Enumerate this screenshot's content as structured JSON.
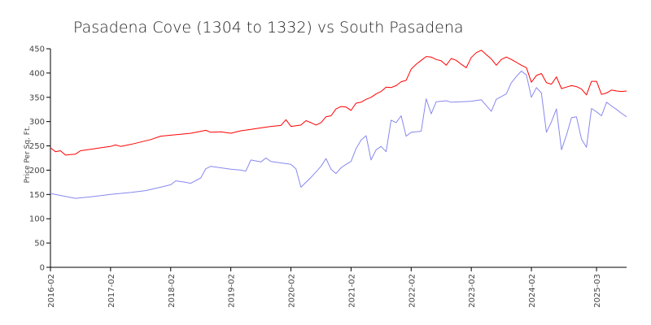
{
  "chart_data": {
    "type": "line",
    "title": "Pasadena Cove (1304 to 1332) vs South Pasadena",
    "xlabel": "",
    "ylabel": "Price Per Sq. Ft.",
    "ylim": [
      0,
      450
    ],
    "yticks": [
      0,
      50,
      100,
      150,
      200,
      250,
      300,
      350,
      400,
      450
    ],
    "xlim": [
      "2016-02",
      "2025-09"
    ],
    "xticks": [
      "2016-02",
      "2017-02",
      "2018-02",
      "2019-02",
      "2020-02",
      "2021-02",
      "2022-02",
      "2023-02",
      "2024-02",
      "2025-03"
    ],
    "grid": false,
    "legend": "none",
    "series": [
      {
        "color": "#ff0000",
        "points": [
          [
            "2016-02",
            246
          ],
          [
            "2016-03",
            238
          ],
          [
            "2016-04",
            240
          ],
          [
            "2016-05",
            231
          ],
          [
            "2016-06",
            232
          ],
          [
            "2016-07",
            233
          ],
          [
            "2016-08",
            240
          ],
          [
            "2016-10",
            243
          ],
          [
            "2016-12",
            246
          ],
          [
            "2017-02",
            249
          ],
          [
            "2017-03",
            252
          ],
          [
            "2017-04",
            249
          ],
          [
            "2017-06",
            253
          ],
          [
            "2017-08",
            258
          ],
          [
            "2017-10",
            263
          ],
          [
            "2017-12",
            270
          ],
          [
            "2018-02",
            272
          ],
          [
            "2018-04",
            274
          ],
          [
            "2018-06",
            276
          ],
          [
            "2018-08",
            280
          ],
          [
            "2018-09",
            282
          ],
          [
            "2018-10",
            278
          ],
          [
            "2018-12",
            279
          ],
          [
            "2019-02",
            276
          ],
          [
            "2019-04",
            281
          ],
          [
            "2019-06",
            284
          ],
          [
            "2019-08",
            287
          ],
          [
            "2019-10",
            290
          ],
          [
            "2019-12",
            292
          ],
          [
            "2020-01",
            304
          ],
          [
            "2020-02",
            290
          ],
          [
            "2020-04",
            293
          ],
          [
            "2020-05",
            302
          ],
          [
            "2020-06",
            298
          ],
          [
            "2020-07",
            293
          ],
          [
            "2020-08",
            298
          ],
          [
            "2020-09",
            310
          ],
          [
            "2020-10",
            312
          ],
          [
            "2020-11",
            326
          ],
          [
            "2020-12",
            331
          ],
          [
            "2021-01",
            330
          ],
          [
            "2021-02",
            323
          ],
          [
            "2021-03",
            338
          ],
          [
            "2021-04",
            340
          ],
          [
            "2021-05",
            346
          ],
          [
            "2021-06",
            350
          ],
          [
            "2021-07",
            357
          ],
          [
            "2021-08",
            362
          ],
          [
            "2021-09",
            371
          ],
          [
            "2021-10",
            370
          ],
          [
            "2021-11",
            374
          ],
          [
            "2021-12",
            382
          ],
          [
            "2022-01",
            385
          ],
          [
            "2022-02",
            408
          ],
          [
            "2022-03",
            418
          ],
          [
            "2022-04",
            426
          ],
          [
            "2022-05",
            434
          ],
          [
            "2022-06",
            433
          ],
          [
            "2022-07",
            428
          ],
          [
            "2022-08",
            425
          ],
          [
            "2022-09",
            416
          ],
          [
            "2022-10",
            430
          ],
          [
            "2022-11",
            426
          ],
          [
            "2022-12",
            418
          ],
          [
            "2023-01",
            411
          ],
          [
            "2023-02",
            432
          ],
          [
            "2023-03",
            442
          ],
          [
            "2023-04",
            447
          ],
          [
            "2023-05",
            438
          ],
          [
            "2023-06",
            429
          ],
          [
            "2023-07",
            416
          ],
          [
            "2023-08",
            428
          ],
          [
            "2023-09",
            433
          ],
          [
            "2023-10",
            428
          ],
          [
            "2023-11",
            422
          ],
          [
            "2023-12",
            416
          ],
          [
            "2024-01",
            411
          ],
          [
            "2024-02",
            381
          ],
          [
            "2024-03",
            395
          ],
          [
            "2024-04",
            399
          ],
          [
            "2024-05",
            380
          ],
          [
            "2024-06",
            377
          ],
          [
            "2024-07",
            392
          ],
          [
            "2024-08",
            368
          ],
          [
            "2024-09",
            371
          ],
          [
            "2024-10",
            374
          ],
          [
            "2024-11",
            372
          ],
          [
            "2024-12",
            367
          ],
          [
            "2025-01",
            355
          ],
          [
            "2025-02",
            383
          ],
          [
            "2025-03",
            383
          ],
          [
            "2025-04",
            356
          ],
          [
            "2025-05",
            359
          ],
          [
            "2025-06",
            365
          ],
          [
            "2025-07",
            363
          ],
          [
            "2025-08",
            362
          ],
          [
            "2025-09",
            363
          ]
        ]
      },
      {
        "color": "#8888ee",
        "points": [
          [
            "2016-02",
            152
          ],
          [
            "2016-05",
            146
          ],
          [
            "2016-07",
            142
          ],
          [
            "2016-10",
            145
          ],
          [
            "2017-02",
            150
          ],
          [
            "2017-06",
            154
          ],
          [
            "2017-09",
            158
          ],
          [
            "2017-12",
            165
          ],
          [
            "2018-02",
            170
          ],
          [
            "2018-03",
            178
          ],
          [
            "2018-05",
            175
          ],
          [
            "2018-06",
            173
          ],
          [
            "2018-08",
            184
          ],
          [
            "2018-09",
            203
          ],
          [
            "2018-10",
            208
          ],
          [
            "2018-12",
            205
          ],
          [
            "2019-02",
            202
          ],
          [
            "2019-04",
            200
          ],
          [
            "2019-05",
            198
          ],
          [
            "2019-06",
            221
          ],
          [
            "2019-08",
            217
          ],
          [
            "2019-09",
            225
          ],
          [
            "2019-10",
            218
          ],
          [
            "2019-12",
            215
          ],
          [
            "2020-02",
            212
          ],
          [
            "2020-03",
            203
          ],
          [
            "2020-04",
            165
          ],
          [
            "2020-06",
            185
          ],
          [
            "2020-08",
            208
          ],
          [
            "2020-09",
            224
          ],
          [
            "2020-10",
            202
          ],
          [
            "2020-11",
            193
          ],
          [
            "2020-12",
            205
          ],
          [
            "2021-01",
            212
          ],
          [
            "2021-02",
            218
          ],
          [
            "2021-03",
            244
          ],
          [
            "2021-04",
            262
          ],
          [
            "2021-05",
            271
          ],
          [
            "2021-06",
            221
          ],
          [
            "2021-07",
            242
          ],
          [
            "2021-08",
            249
          ],
          [
            "2021-09",
            238
          ],
          [
            "2021-10",
            303
          ],
          [
            "2021-11",
            298
          ],
          [
            "2021-12",
            312
          ],
          [
            "2022-01",
            270
          ],
          [
            "2022-02",
            278
          ],
          [
            "2022-04",
            280
          ],
          [
            "2022-05",
            347
          ],
          [
            "2022-06",
            316
          ],
          [
            "2022-07",
            341
          ],
          [
            "2022-09",
            343
          ],
          [
            "2022-10",
            340
          ],
          [
            "2022-12",
            341
          ],
          [
            "2023-02",
            342
          ],
          [
            "2023-04",
            345
          ],
          [
            "2023-05",
            333
          ],
          [
            "2023-06",
            321
          ],
          [
            "2023-07",
            346
          ],
          [
            "2023-09",
            357
          ],
          [
            "2023-10",
            380
          ],
          [
            "2023-11",
            393
          ],
          [
            "2023-12",
            404
          ],
          [
            "2024-01",
            396
          ],
          [
            "2024-02",
            350
          ],
          [
            "2024-03",
            370
          ],
          [
            "2024-04",
            359
          ],
          [
            "2024-05",
            278
          ],
          [
            "2024-06",
            300
          ],
          [
            "2024-07",
            326
          ],
          [
            "2024-08",
            242
          ],
          [
            "2024-09",
            272
          ],
          [
            "2024-10",
            308
          ],
          [
            "2024-11",
            310
          ],
          [
            "2024-12",
            264
          ],
          [
            "2025-01",
            247
          ],
          [
            "2025-02",
            327
          ],
          [
            "2025-03",
            320
          ],
          [
            "2025-04",
            312
          ],
          [
            "2025-05",
            340
          ],
          [
            "2025-06",
            332
          ],
          [
            "2025-07",
            325
          ],
          [
            "2025-08",
            317
          ],
          [
            "2025-09",
            310
          ]
        ]
      }
    ]
  }
}
